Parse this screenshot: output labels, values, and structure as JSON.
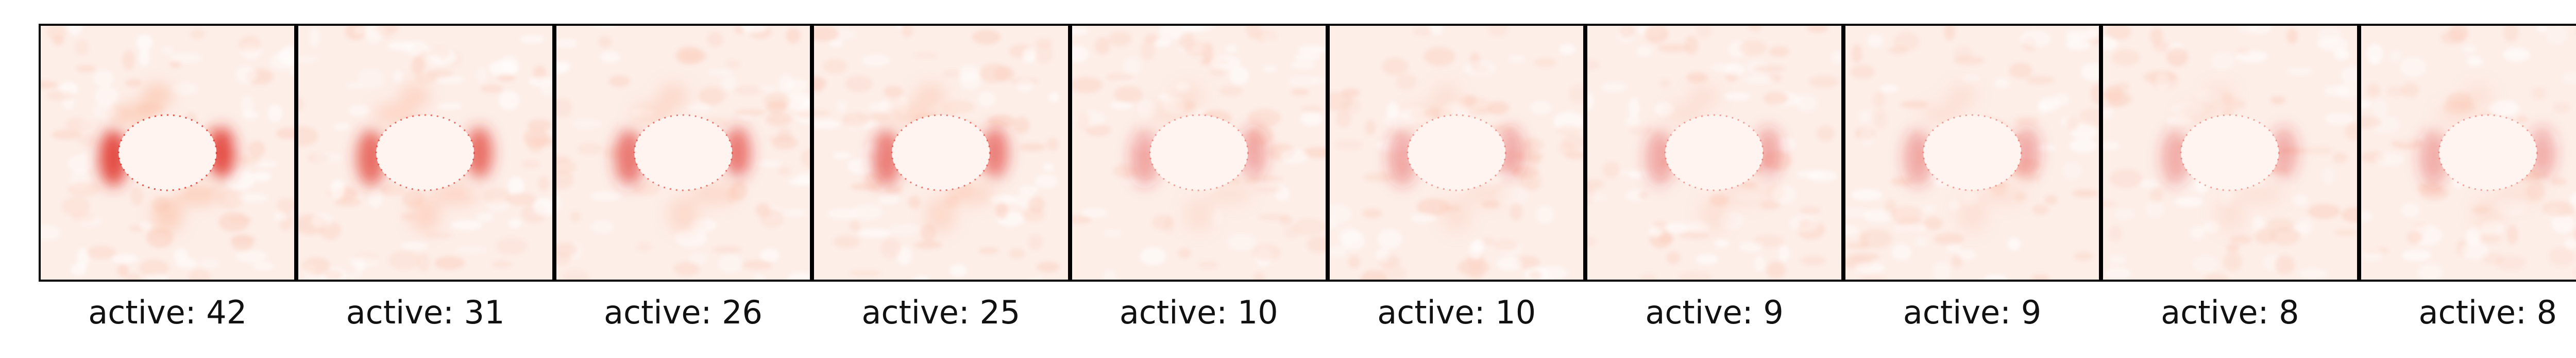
{
  "colors": {
    "background_tint": "#fdeee8",
    "blob_fill": "#fff4ef",
    "intensity_scale": [
      "#fff5f0",
      "#fcbba1",
      "#fb6a4a",
      "#de2d26",
      "#a50f15"
    ],
    "frame": "#000000",
    "text": "#111111"
  },
  "panels": [
    {
      "caption": "active: 42",
      "active": 42
    },
    {
      "caption": "active: 31",
      "active": 31
    },
    {
      "caption": "active: 26",
      "active": 26
    },
    {
      "caption": "active: 25",
      "active": 25
    },
    {
      "caption": "active: 10",
      "active": 10
    },
    {
      "caption": "active: 10",
      "active": 10
    },
    {
      "caption": "active: 9",
      "active": 9
    },
    {
      "caption": "active: 9",
      "active": 9
    },
    {
      "caption": "active: 8",
      "active": 8
    },
    {
      "caption": "active: 8",
      "active": 8
    }
  ]
}
